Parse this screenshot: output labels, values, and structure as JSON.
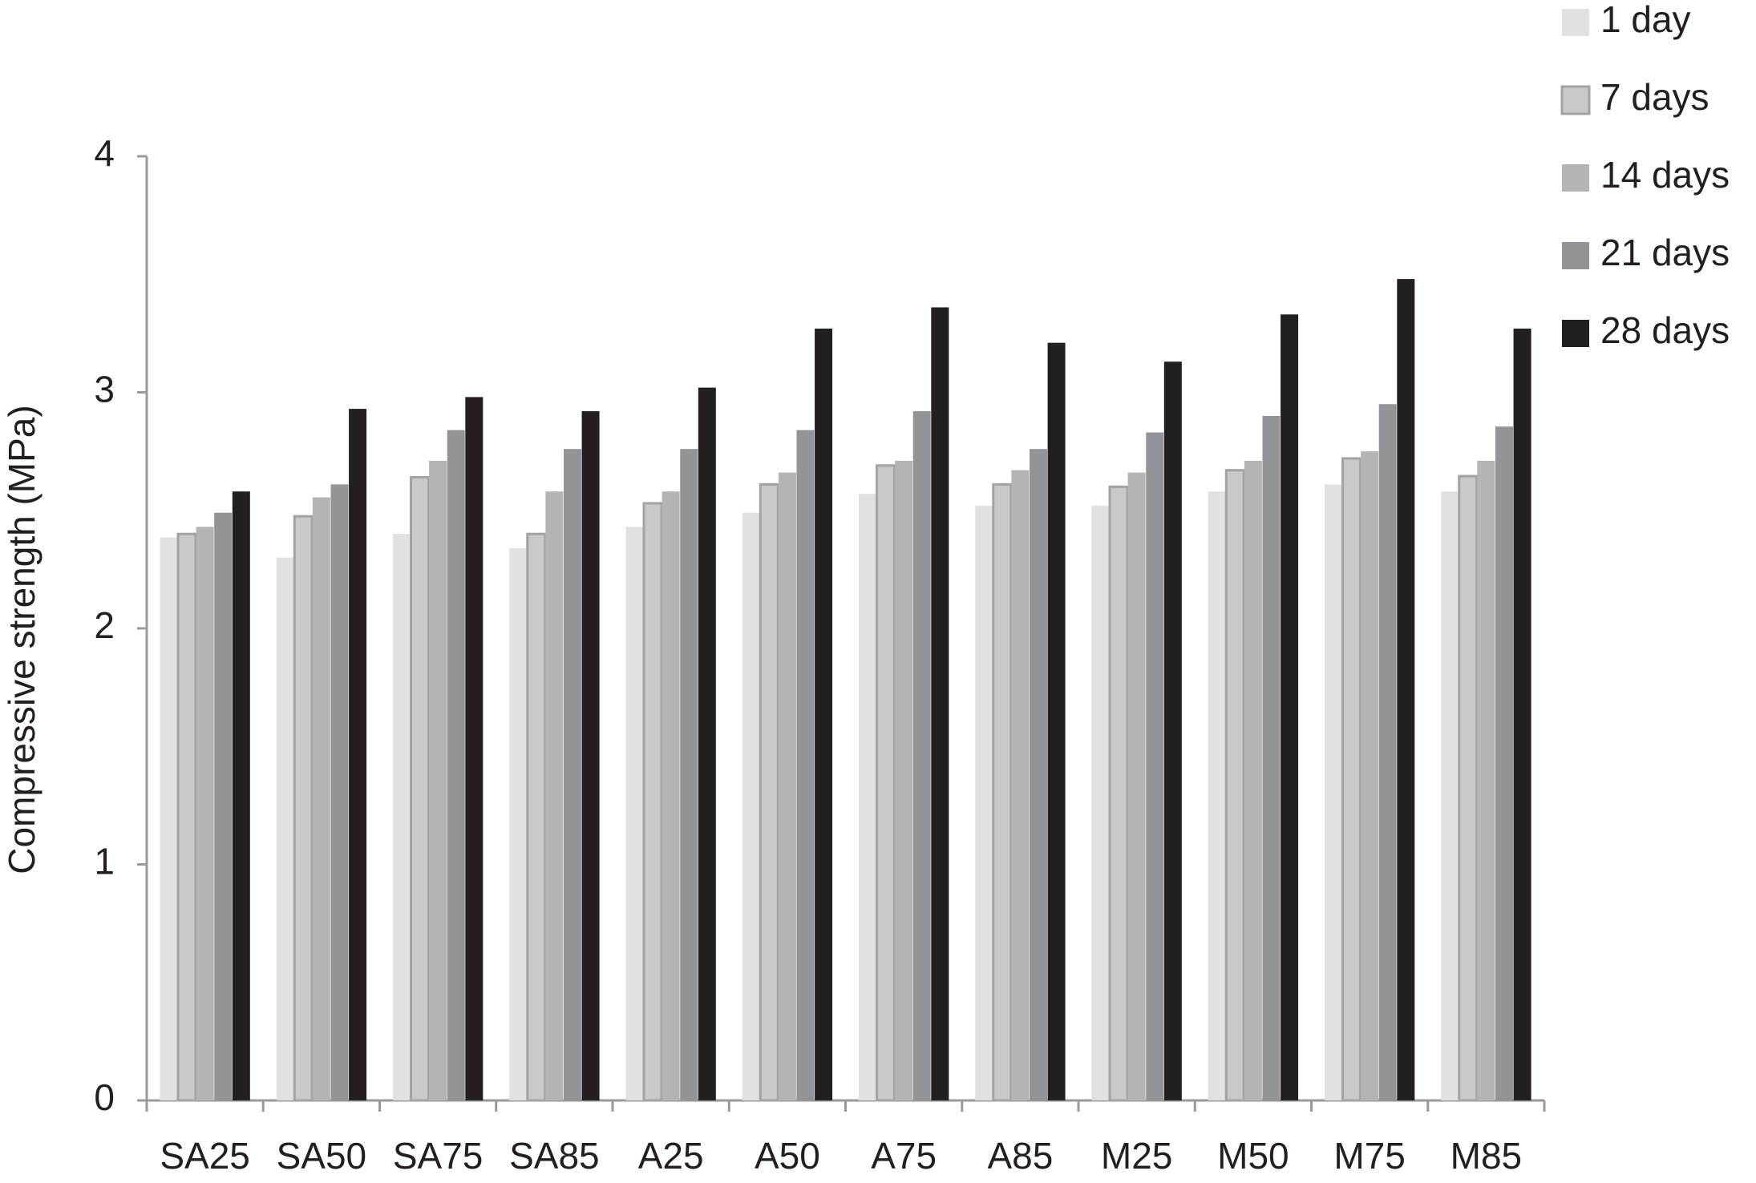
{
  "chart_data": {
    "type": "bar",
    "y_label": "Compressive strength (MPa)",
    "categories": [
      "SA25",
      "SA50",
      "SA75",
      "SA85",
      "A25",
      "A50",
      "A75",
      "A85",
      "M25",
      "M50",
      "M75",
      "M85"
    ],
    "series": [
      {
        "name": "1 day",
        "color": "#e0e1e3",
        "values": [
          2.385,
          2.3,
          2.4,
          2.34,
          2.43,
          2.49,
          2.57,
          2.52,
          2.52,
          2.58,
          2.61,
          2.58
        ]
      },
      {
        "name": "7 days",
        "color": "#c8c9cb",
        "edgecolor": "#a3a3a5",
        "values": [
          2.4,
          2.475,
          2.64,
          2.4,
          2.53,
          2.61,
          2.69,
          2.61,
          2.6,
          2.67,
          2.72,
          2.645
        ]
      },
      {
        "name": "14 days",
        "color": "#b3b4b6",
        "values": [
          2.43,
          2.555,
          2.71,
          2.58,
          2.58,
          2.66,
          2.71,
          2.67,
          2.66,
          2.71,
          2.75,
          2.71
        ]
      },
      {
        "name": "21 days",
        "color": "#939498",
        "values": [
          2.49,
          2.61,
          2.84,
          2.76,
          2.76,
          2.84,
          2.92,
          2.76,
          2.83,
          2.9,
          2.95,
          2.855
        ]
      },
      {
        "name": "28 days",
        "color": "#231f20",
        "values": [
          2.58,
          2.93,
          2.98,
          2.92,
          3.02,
          3.27,
          3.36,
          3.21,
          3.13,
          3.33,
          3.48,
          3.27
        ]
      }
    ],
    "ylim": [
      0,
      4
    ],
    "yticks": [
      0,
      1,
      2,
      3,
      4
    ],
    "grid": false,
    "legend": "top-right"
  }
}
